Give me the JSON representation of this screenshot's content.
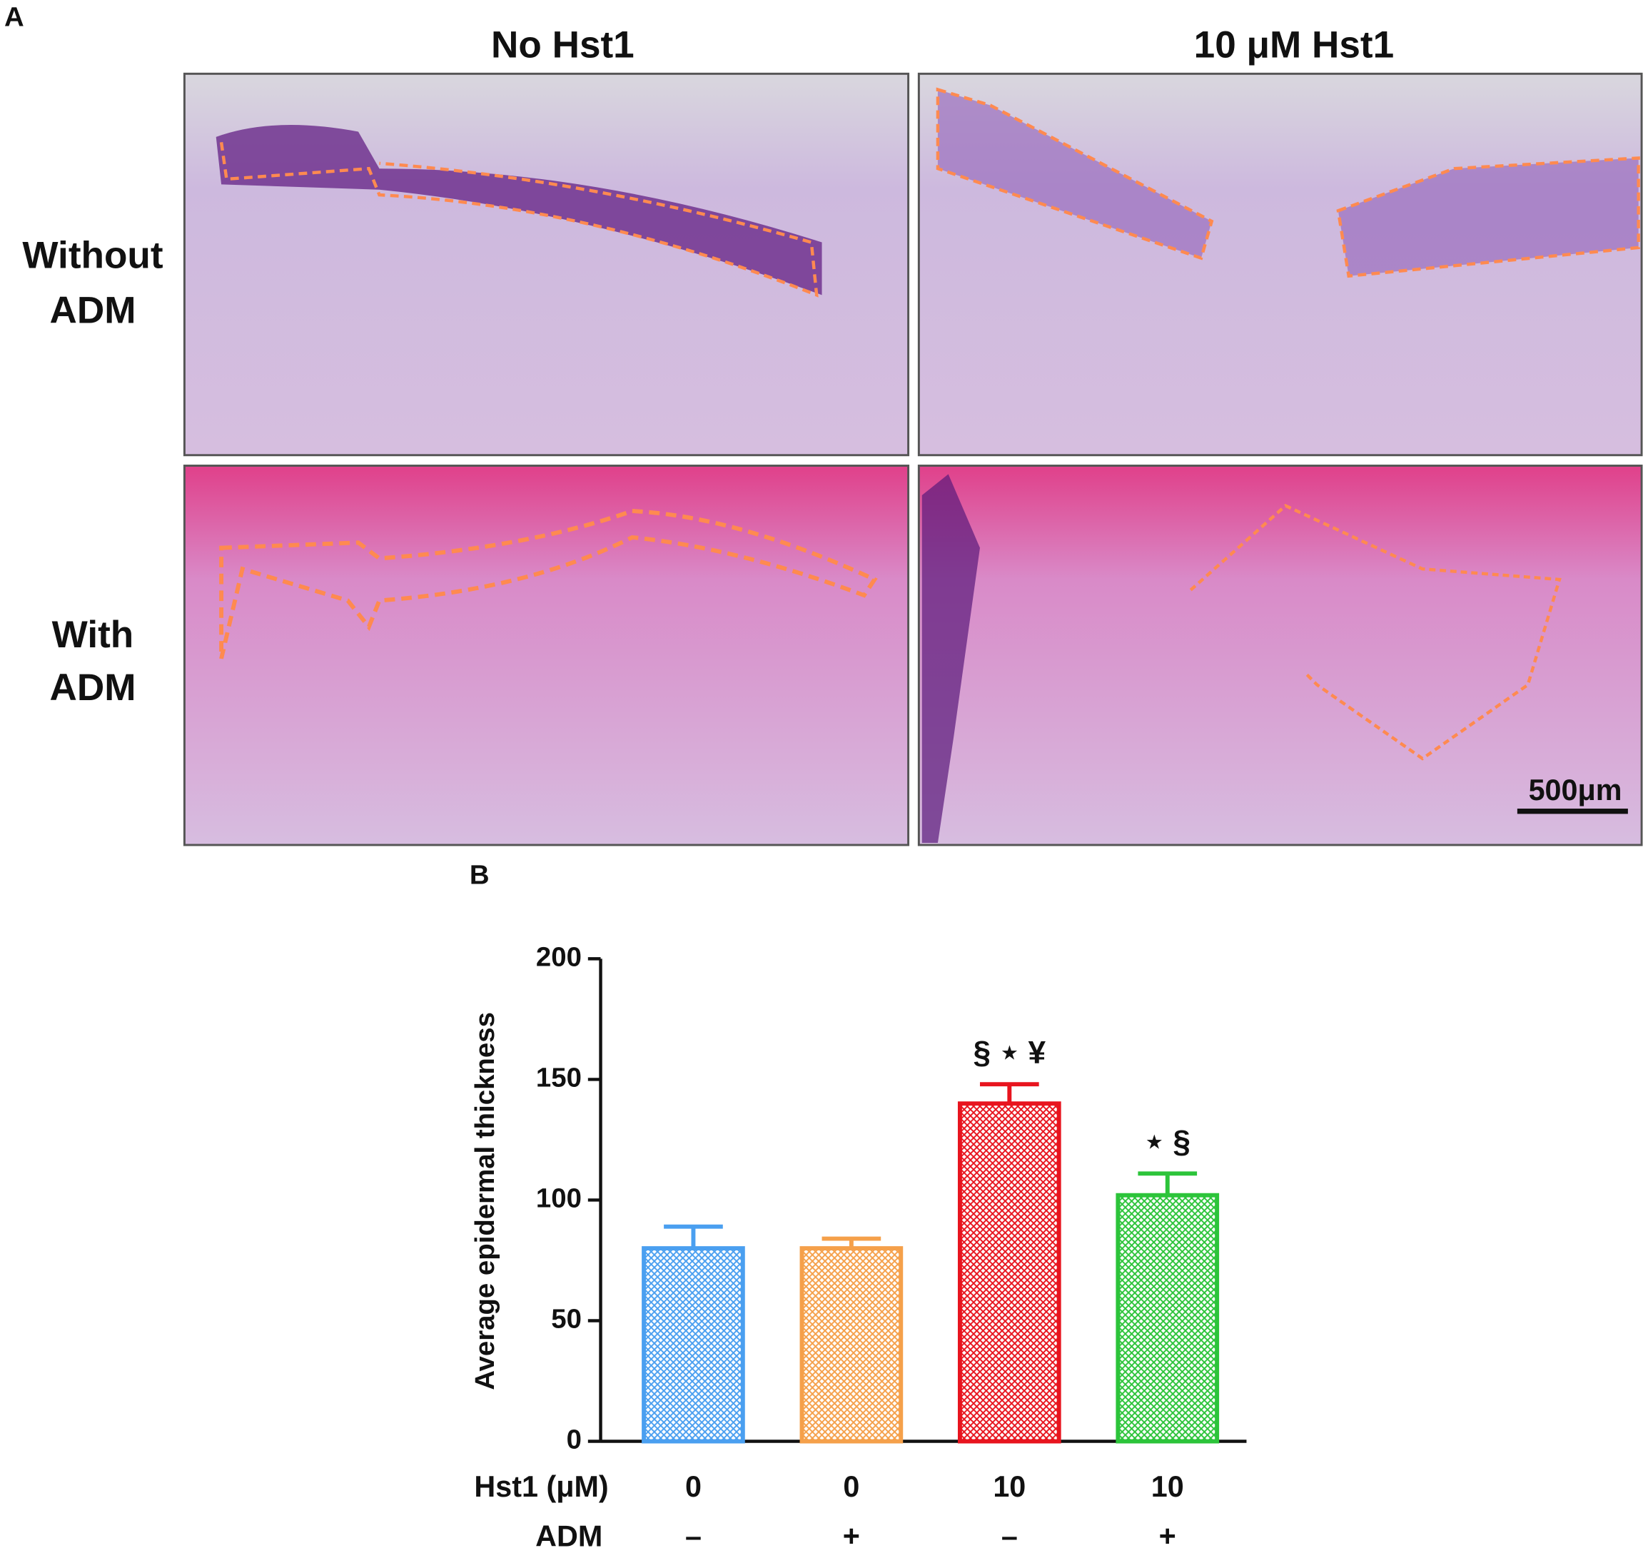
{
  "panel_a": {
    "label": "A",
    "columns": [
      "No Hst1",
      "10 μM Hst1"
    ],
    "rows": [
      [
        "Without",
        "ADM"
      ],
      [
        "With",
        "ADM"
      ]
    ],
    "scale_bar": "500μm"
  },
  "chart_data": {
    "type": "bar",
    "panel_label": "B",
    "y_label": "Average epidermal thickness",
    "categories": [
      "0",
      "0",
      "10",
      "10"
    ],
    "category_rows": [
      {
        "name": "Hst1 (μM)",
        "labels": [
          "0",
          "0",
          "10",
          "10"
        ]
      },
      {
        "name": "ADM",
        "labels": [
          "–",
          "+",
          "–",
          "+"
        ]
      }
    ],
    "values": [
      80,
      80,
      140,
      102
    ],
    "errors": [
      9,
      4,
      8,
      9
    ],
    "colors": [
      "#4a9ff0",
      "#f5a04a",
      "#e8141e",
      "#2cc43a"
    ],
    "annotations": [
      null,
      null,
      "§ ⋆ ¥",
      "⋆ §"
    ],
    "ylim": [
      0,
      200
    ],
    "yticks": [
      0,
      50,
      100,
      150,
      200
    ]
  }
}
